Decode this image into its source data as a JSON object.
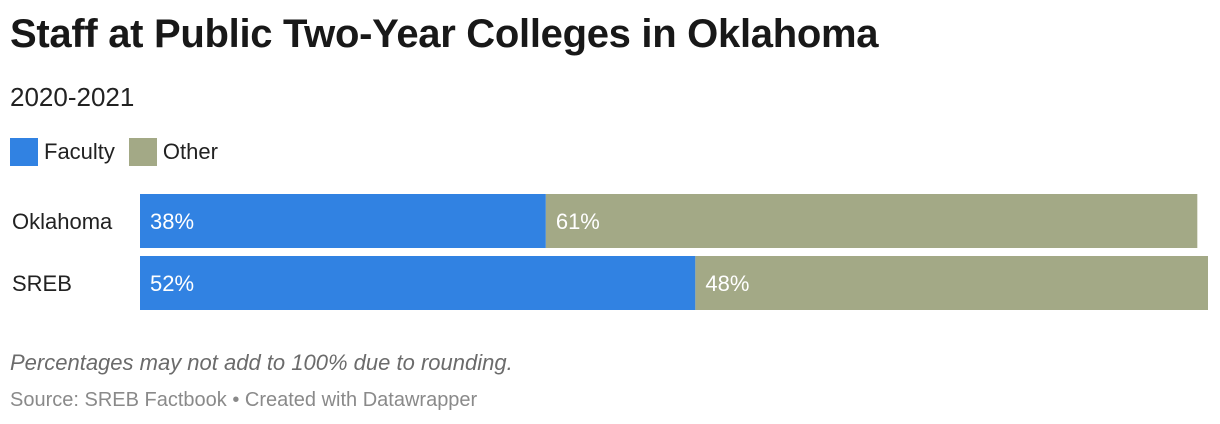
{
  "chart_data": {
    "type": "bar",
    "orientation": "horizontal",
    "stacked": true,
    "title": "Staff at Public Two-Year Colleges in Oklahoma",
    "subtitle": "2020-2021",
    "categories": [
      "Oklahoma",
      "SREB"
    ],
    "series": [
      {
        "name": "Faculty",
        "color": "#3182e2",
        "values": [
          38,
          52
        ],
        "labels": [
          "38%",
          "52%"
        ]
      },
      {
        "name": "Other",
        "color": "#a3a986",
        "values": [
          61,
          48
        ],
        "labels": [
          "61%",
          "48%"
        ]
      }
    ],
    "xlim": [
      0,
      100
    ],
    "grid": false,
    "legend_position": "top-left",
    "note": "Percentages may not add to 100% due to rounding.",
    "source": "Source: SREB Factbook • Created with Datawrapper"
  }
}
